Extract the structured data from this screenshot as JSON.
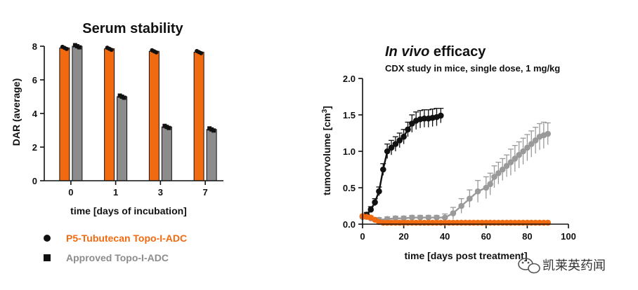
{
  "chart_data": [
    {
      "type": "bar",
      "title": "Serum stability",
      "xlabel": "time [days of incubation]",
      "ylabel": "DAR (average)",
      "ylim": [
        0,
        8
      ],
      "yticks": [
        "0",
        "2",
        "4",
        "6",
        "8"
      ],
      "categories": [
        "0",
        "1",
        "3",
        "7"
      ],
      "series": [
        {
          "name": "P5-Tubutecan Topo-I-ADC",
          "color": "#f26a10",
          "marker": "circle",
          "values": [
            7.9,
            7.85,
            7.7,
            7.65
          ]
        },
        {
          "name": "Approved Topo-I-ADC",
          "color": "#8c8c8c",
          "marker": "square",
          "values": [
            8.0,
            5.0,
            3.2,
            3.05
          ]
        }
      ],
      "legend_position": "bottom-left"
    },
    {
      "type": "line",
      "title_italic": "In vivo",
      "title_rest": " efficacy",
      "subtitle": "CDX study in mice, single dose, 1 mg/kg",
      "xlabel": "time [days post treatment]",
      "ylabel_main": "tumorvolume [cm",
      "ylabel_sup": "3",
      "ylabel_close": "]",
      "xlim": [
        0,
        100
      ],
      "ylim": [
        0,
        2.0
      ],
      "xticks": [
        "0",
        "20",
        "40",
        "60",
        "80",
        "100"
      ],
      "yticks": [
        "0.0",
        "0.5",
        "1.0",
        "1.5",
        "2.0"
      ],
      "series": [
        {
          "color": "#111111",
          "x": [
            0,
            2,
            4,
            6,
            8,
            10,
            12,
            14,
            16,
            18,
            20,
            22,
            24,
            26,
            28,
            30,
            32,
            34,
            36,
            38
          ],
          "y": [
            0.1,
            0.13,
            0.2,
            0.3,
            0.45,
            0.75,
            1.0,
            1.05,
            1.1,
            1.15,
            1.2,
            1.3,
            1.38,
            1.42,
            1.44,
            1.45,
            1.45,
            1.46,
            1.47,
            1.49
          ],
          "err": [
            0.02,
            0.03,
            0.04,
            0.05,
            0.06,
            0.08,
            0.1,
            0.1,
            0.1,
            0.1,
            0.1,
            0.1,
            0.12,
            0.12,
            0.12,
            0.12,
            0.12,
            0.12,
            0.12,
            0.1
          ]
        },
        {
          "color": "#9a9a9a",
          "x": [
            0,
            4,
            8,
            12,
            16,
            20,
            24,
            28,
            32,
            36,
            40,
            44,
            48,
            52,
            56,
            60,
            62,
            64,
            66,
            68,
            70,
            72,
            74,
            76,
            78,
            80,
            82,
            84,
            86,
            88,
            90
          ],
          "y": [
            0.1,
            0.08,
            0.06,
            0.07,
            0.08,
            0.08,
            0.09,
            0.09,
            0.09,
            0.09,
            0.09,
            0.15,
            0.25,
            0.35,
            0.45,
            0.5,
            0.55,
            0.65,
            0.7,
            0.75,
            0.8,
            0.85,
            0.9,
            0.95,
            1.0,
            1.05,
            1.1,
            1.15,
            1.2,
            1.22,
            1.24
          ],
          "err": [
            0.03,
            0.03,
            0.03,
            0.03,
            0.03,
            0.03,
            0.03,
            0.03,
            0.03,
            0.03,
            0.05,
            0.08,
            0.1,
            0.12,
            0.15,
            0.15,
            0.15,
            0.15,
            0.15,
            0.15,
            0.15,
            0.18,
            0.18,
            0.18,
            0.18,
            0.18,
            0.18,
            0.18,
            0.18,
            0.18,
            0.15
          ]
        },
        {
          "color": "#f26a10",
          "x": [
            0,
            2,
            4,
            6,
            8,
            10,
            12,
            14,
            16,
            18,
            20,
            22,
            24,
            26,
            28,
            30,
            32,
            34,
            36,
            38,
            40,
            42,
            44,
            46,
            48,
            50,
            52,
            54,
            56,
            58,
            60,
            62,
            64,
            66,
            68,
            70,
            72,
            74,
            76,
            78,
            80,
            82,
            84,
            86,
            88,
            90
          ],
          "y": [
            0.11,
            0.1,
            0.09,
            0.06,
            0.03,
            0.02,
            0.02,
            0.02,
            0.02,
            0.02,
            0.02,
            0.02,
            0.02,
            0.02,
            0.02,
            0.02,
            0.02,
            0.02,
            0.02,
            0.02,
            0.02,
            0.02,
            0.02,
            0.02,
            0.02,
            0.02,
            0.02,
            0.02,
            0.02,
            0.02,
            0.02,
            0.02,
            0.02,
            0.02,
            0.02,
            0.02,
            0.02,
            0.02,
            0.02,
            0.02,
            0.02,
            0.02,
            0.02,
            0.02,
            0.02,
            0.02
          ]
        }
      ]
    }
  ],
  "watermark": {
    "text": "凯莱英药闻"
  }
}
